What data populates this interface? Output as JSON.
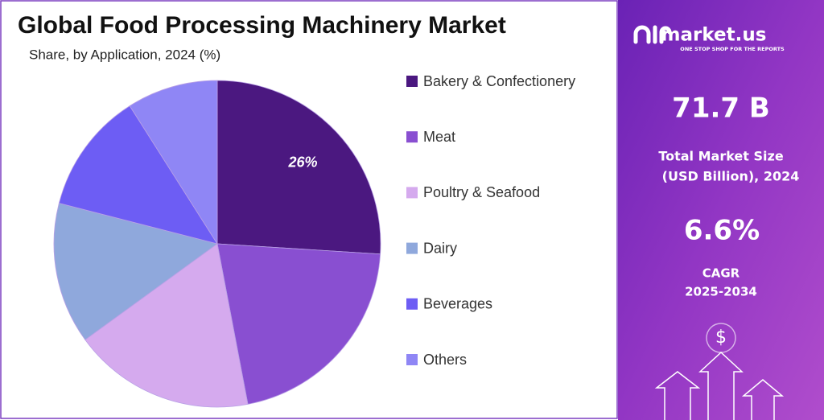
{
  "chart_data": {
    "type": "pie",
    "title": "Global Food Processing Machinery Market",
    "subtitle": "Share, by Application, 2024 (%)",
    "categories": [
      "Bakery & Confectionery",
      "Meat",
      "Poultry & Seafood",
      "Dairy",
      "Beverages",
      "Others"
    ],
    "values": [
      26,
      21,
      18,
      14,
      12,
      9
    ],
    "value_labels": [
      "26%",
      null,
      null,
      null,
      null,
      null
    ],
    "colors": [
      "#4b1880",
      "#894fd1",
      "#d5aaee",
      "#8fa8dc",
      "#6d5df4",
      "#8f86f5"
    ],
    "legend": "right"
  },
  "panel": {
    "brand": "market.us",
    "tagline": "ONE STOP SHOP FOR THE REPORTS",
    "market_size": "71.7 B",
    "market_size_label": [
      "Total Market Size",
      "(USD Billion), 2024"
    ],
    "cagr": "6.6%",
    "cagr_label": [
      "CAGR",
      "2025-2034"
    ],
    "icon_symbol": "$"
  }
}
